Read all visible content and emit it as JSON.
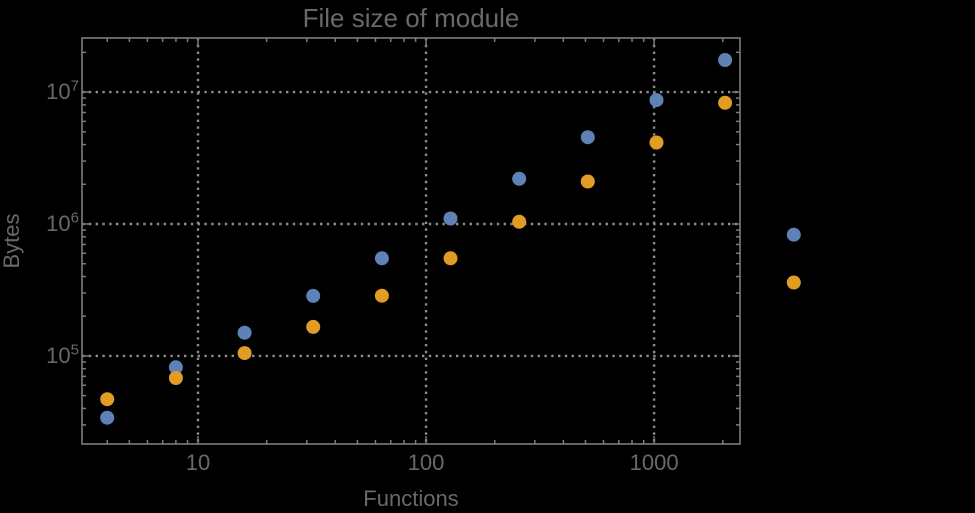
{
  "chart_data": {
    "type": "scatter",
    "title": "File size of module",
    "xlabel": "Functions",
    "ylabel": "Bytes",
    "x_scale": "log",
    "y_scale": "log",
    "grid": "dotted",
    "legend_position": "none",
    "xlim": [
      3.1,
      2380
    ],
    "ylim": [
      21500,
      25700000
    ],
    "x_ticks": [
      10,
      100,
      1000
    ],
    "x_tick_labels": [
      "10",
      "100",
      "1000"
    ],
    "y_ticks": [
      100000,
      1000000,
      10000000
    ],
    "y_tick_labels": [
      {
        "base": "10",
        "exp": "5"
      },
      {
        "base": "10",
        "exp": "6"
      },
      {
        "base": "10",
        "exp": "7"
      }
    ],
    "x": [
      4,
      8,
      16,
      32,
      64,
      128,
      256,
      512,
      1024,
      2048,
      4096
    ],
    "series": [
      {
        "name": "blue",
        "color": "#5E82B5",
        "values": [
          34000,
          82000,
          150000,
          285000,
          550000,
          1100000,
          2200000,
          4550000,
          8700000,
          17500000,
          830000
        ]
      },
      {
        "name": "orange",
        "color": "#E19C24",
        "values": [
          47000,
          68000,
          105000,
          166000,
          286000,
          550000,
          1040000,
          2100000,
          4150000,
          8300000,
          360000
        ]
      }
    ],
    "note": "points at x=4096 are drawn outside the right edge of the plot frame"
  },
  "colors": {
    "background": "#000000",
    "frame": "#7C7C7C",
    "grid": "#8D8D8D",
    "text": "#696969",
    "series_blue": "#5E82B5",
    "series_orange": "#E19C24"
  }
}
